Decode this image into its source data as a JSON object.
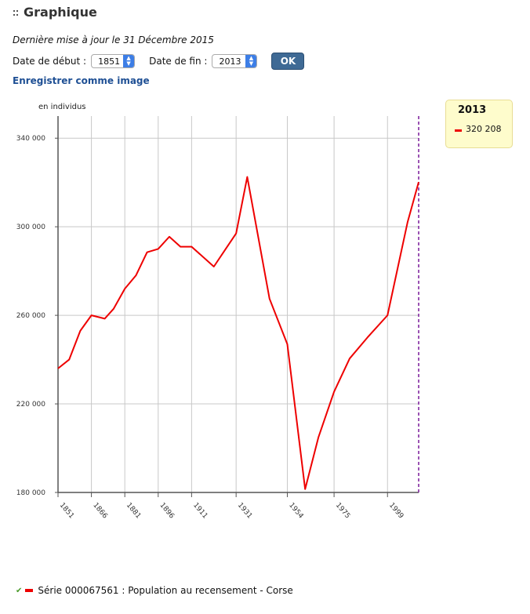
{
  "header": {
    "title": "Graphique",
    "updated": "Dernière mise à jour le 31 Décembre 2015"
  },
  "controls": {
    "start_label": "Date de début :",
    "start_value": "1851",
    "end_label": "Date de fin :",
    "end_value": "2013",
    "ok_label": "OK",
    "save_label": "Enregistrer comme image"
  },
  "legend": {
    "year": "2013",
    "value": "320 208",
    "series_color": "#ee0000"
  },
  "series_label": "Série 000067561 : Population au recensement - Corse",
  "icons": {
    "grip": "drag-handle-icon",
    "check": "check-icon"
  },
  "chart_data": {
    "type": "line",
    "ylabel": "en individus",
    "xlabel": "",
    "ylim": [
      180000,
      350000
    ],
    "y_ticks": [
      180000,
      220000,
      260000,
      300000,
      340000
    ],
    "y_tick_labels": [
      "180 000",
      "220 000",
      "260 000",
      "300 000",
      "340 000"
    ],
    "xlim": [
      1851,
      2013
    ],
    "x_ticks": [
      1851,
      1866,
      1881,
      1896,
      1911,
      1931,
      1954,
      1975,
      1999
    ],
    "x_tick_labels": [
      "1851",
      "1866",
      "1881",
      "1896",
      "1911",
      "1931",
      "1954",
      "1975",
      "1999"
    ],
    "grid": true,
    "highlight_x": 2013,
    "series": [
      {
        "name": "Population au recensement - Corse",
        "color": "#ee0000",
        "x": [
          1851,
          1856,
          1861,
          1866,
          1872,
          1876,
          1881,
          1886,
          1891,
          1896,
          1901,
          1906,
          1911,
          1921,
          1926,
          1931,
          1936,
          1946,
          1954,
          1962,
          1968,
          1975,
          1982,
          1990,
          1999,
          2008,
          2013
        ],
        "values": [
          236000,
          240000,
          253000,
          260000,
          258500,
          263000,
          272000,
          278000,
          288500,
          290000,
          295500,
          291000,
          291000,
          282000,
          289500,
          297000,
          322500,
          267500,
          247000,
          181500,
          205000,
          225500,
          240500,
          250000,
          260000,
          302000,
          320208
        ]
      }
    ]
  }
}
